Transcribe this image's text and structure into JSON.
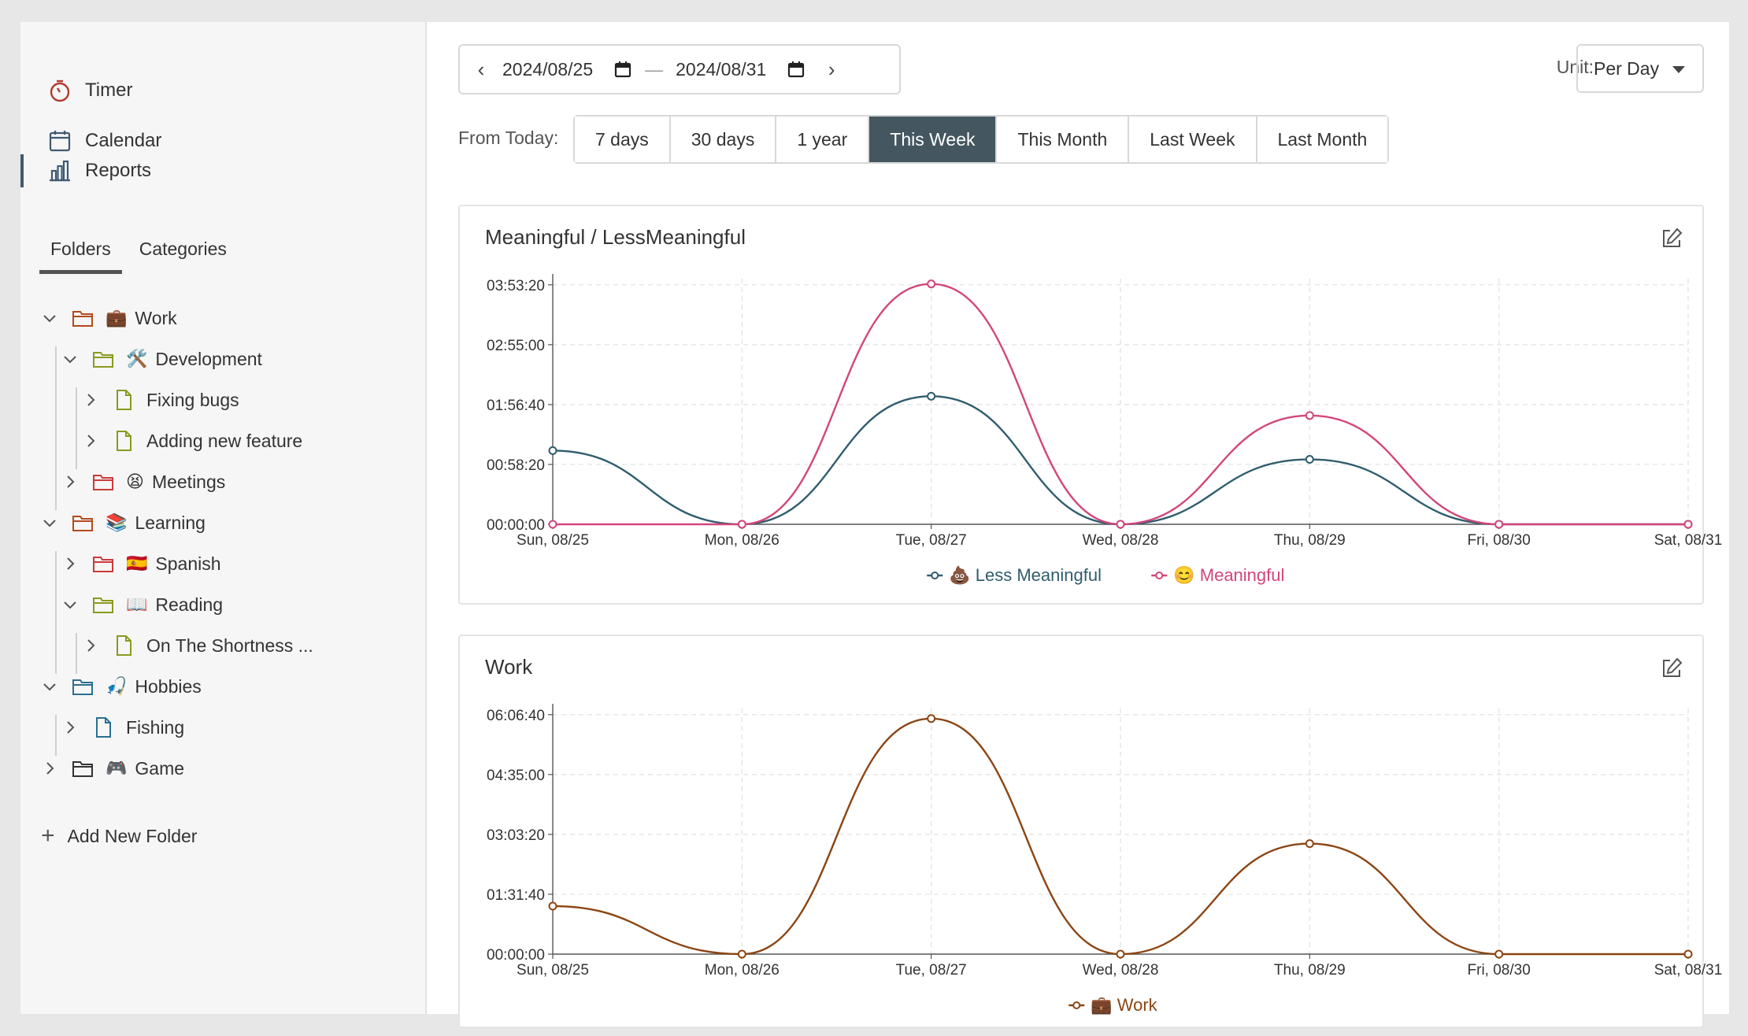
{
  "nav": {
    "timer": "Timer",
    "calendar": "Calendar",
    "reports": "Reports"
  },
  "sidebar_tabs": {
    "folders": "Folders",
    "categories": "Categories"
  },
  "tree": [
    {
      "label": "Work",
      "emoji": "💼",
      "state": "expanded",
      "kind": "folder",
      "color": "#b34a1e"
    },
    {
      "label": "Development",
      "emoji": "🛠️",
      "state": "expanded",
      "kind": "folder",
      "color": "#8a9a1e"
    },
    {
      "label": "Fixing bugs",
      "emoji": "",
      "state": "collapsed",
      "kind": "file",
      "color": "#8a9a1e"
    },
    {
      "label": "Adding new feature",
      "emoji": "",
      "state": "collapsed",
      "kind": "file",
      "color": "#8a9a1e"
    },
    {
      "label": "Meetings",
      "emoji": "😫",
      "state": "collapsed",
      "kind": "folder",
      "color": "#cc3a3a"
    },
    {
      "label": "Learning",
      "emoji": "📚",
      "state": "expanded",
      "kind": "folder",
      "color": "#b34a1e"
    },
    {
      "label": "Spanish",
      "emoji": "🇪🇸",
      "state": "collapsed",
      "kind": "folder",
      "color": "#cc3a3a"
    },
    {
      "label": "Reading",
      "emoji": "📖",
      "state": "expanded",
      "kind": "folder",
      "color": "#8a9a1e"
    },
    {
      "label": "On The Shortness ...",
      "emoji": "",
      "state": "collapsed",
      "kind": "file",
      "color": "#8a9a1e"
    },
    {
      "label": "Hobbies",
      "emoji": "🎣",
      "state": "expanded",
      "kind": "folder",
      "color": "#2a6f8f"
    },
    {
      "label": "Fishing",
      "emoji": "",
      "state": "collapsed",
      "kind": "file",
      "color": "#2a6f8f"
    },
    {
      "label": "Game",
      "emoji": "🎮",
      "state": "collapsed",
      "kind": "folder",
      "color": "#333333"
    }
  ],
  "add_folder": "Add New Folder",
  "date_range": {
    "start": "2024/08/25",
    "end": "2024/08/31",
    "separator": "—"
  },
  "unit": {
    "label": "Unit:",
    "value": "Per Day"
  },
  "range": {
    "label": "From Today:",
    "options": [
      "7 days",
      "30 days",
      "1 year",
      "This Week",
      "This Month",
      "Last Week",
      "Last Month"
    ],
    "active": "This Week"
  },
  "chart_data": [
    {
      "type": "line",
      "title": "Meaningful / LessMeaningful",
      "categories": [
        "Sun, 08/25",
        "Mon, 08/26",
        "Tue, 08/27",
        "Wed, 08/28",
        "Thu, 08/29",
        "Fri, 08/30",
        "Sat, 08/31"
      ],
      "yticks": [
        "00:00:00",
        "00:58:20",
        "01:56:40",
        "02:55:00",
        "03:53:20"
      ],
      "ylim_seconds": [
        0,
        14000
      ],
      "series": [
        {
          "name": "Less Meaningful",
          "emoji": "💩",
          "color": "#2f5d6e",
          "values_seconds": [
            4200,
            0,
            7300,
            0,
            3700,
            0,
            0
          ]
        },
        {
          "name": "Meaningful",
          "emoji": "😊",
          "color": "#d2467a",
          "values_seconds": [
            0,
            0,
            13700,
            0,
            6200,
            0,
            0
          ]
        }
      ],
      "grid": true,
      "legend": "bottom-center"
    },
    {
      "type": "line",
      "title": "Work",
      "categories": [
        "Sun, 08/25",
        "Mon, 08/26",
        "Tue, 08/27",
        "Wed, 08/28",
        "Thu, 08/29",
        "Fri, 08/30",
        "Sat, 08/31"
      ],
      "yticks": [
        "00:00:00",
        "01:31:40",
        "03:03:20",
        "04:35:00",
        "06:06:40"
      ],
      "ylim_seconds": [
        0,
        22000
      ],
      "series": [
        {
          "name": "Work",
          "emoji": "💼",
          "color": "#8b4513",
          "values_seconds": [
            4300,
            0,
            21100,
            0,
            9900,
            0,
            0
          ]
        }
      ],
      "grid": true,
      "legend": "bottom-center"
    }
  ]
}
